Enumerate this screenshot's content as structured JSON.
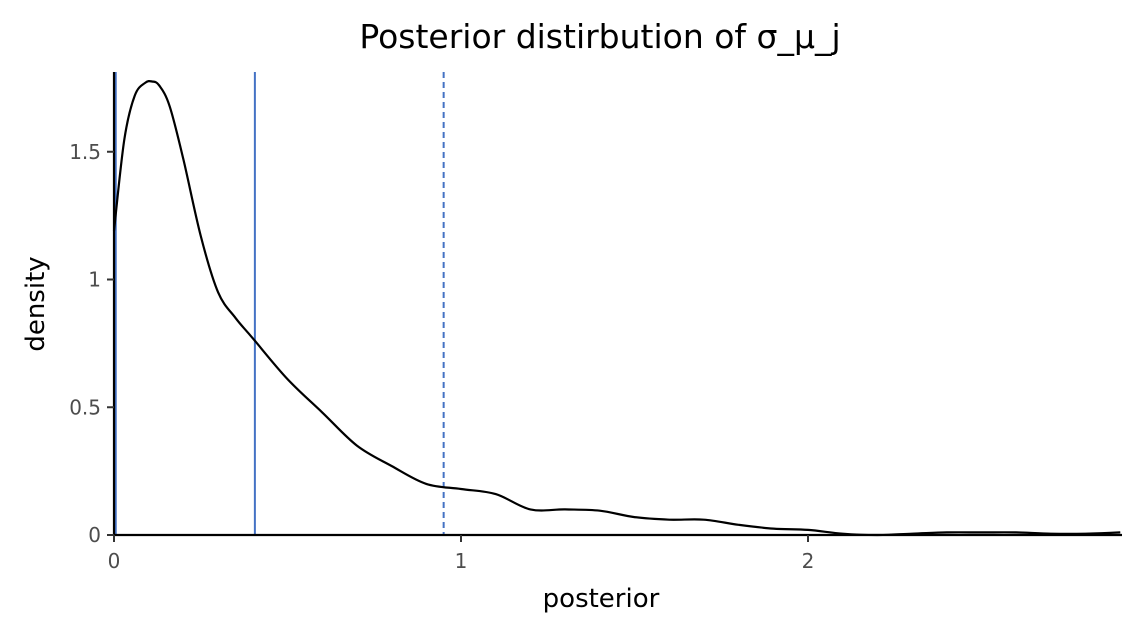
{
  "chart_data": {
    "type": "line",
    "title": "Posterior distirbution of σ_μ_j",
    "xlabel": "posterior",
    "ylabel": "density",
    "xlim": [
      0,
      2.9
    ],
    "ylim": [
      0,
      1.8
    ],
    "x_ticks": [
      {
        "value": 0,
        "label": "0"
      },
      {
        "value": 1,
        "label": "1"
      },
      {
        "value": 2,
        "label": "2"
      }
    ],
    "y_ticks": [
      {
        "value": 0,
        "label": "0"
      },
      {
        "value": 0.5,
        "label": "0.5"
      },
      {
        "value": 1,
        "label": "1"
      },
      {
        "value": 1.5,
        "label": "1.5"
      }
    ],
    "grid": false,
    "legend": "none",
    "series": [
      {
        "color": "#000000",
        "x": [
          0.0,
          0.03,
          0.06,
          0.09,
          0.11,
          0.13,
          0.16,
          0.2,
          0.25,
          0.3,
          0.35,
          0.4,
          0.5,
          0.6,
          0.7,
          0.8,
          0.9,
          1.0,
          1.1,
          1.2,
          1.3,
          1.4,
          1.5,
          1.6,
          1.7,
          1.8,
          1.9,
          2.0,
          2.1,
          2.2,
          2.3,
          2.4,
          2.5,
          2.6,
          2.7,
          2.8,
          2.9
        ],
        "y": [
          1.19,
          1.55,
          1.72,
          1.77,
          1.775,
          1.76,
          1.68,
          1.47,
          1.17,
          0.95,
          0.85,
          0.77,
          0.61,
          0.48,
          0.35,
          0.27,
          0.2,
          0.18,
          0.16,
          0.1,
          0.1,
          0.095,
          0.07,
          0.06,
          0.06,
          0.04,
          0.025,
          0.02,
          0.005,
          0.0,
          0.005,
          0.01,
          0.01,
          0.01,
          0.005,
          0.005,
          0.01
        ]
      }
    ],
    "reference_lines": [
      {
        "x": 0.003,
        "color": "#000000",
        "style": "dashed"
      },
      {
        "x": 0.005,
        "color": "#4472c4",
        "style": "solid"
      },
      {
        "x": 0.406,
        "color": "#4472c4",
        "style": "solid"
      },
      {
        "x": 0.95,
        "color": "#4472c4",
        "style": "dashed"
      }
    ]
  }
}
